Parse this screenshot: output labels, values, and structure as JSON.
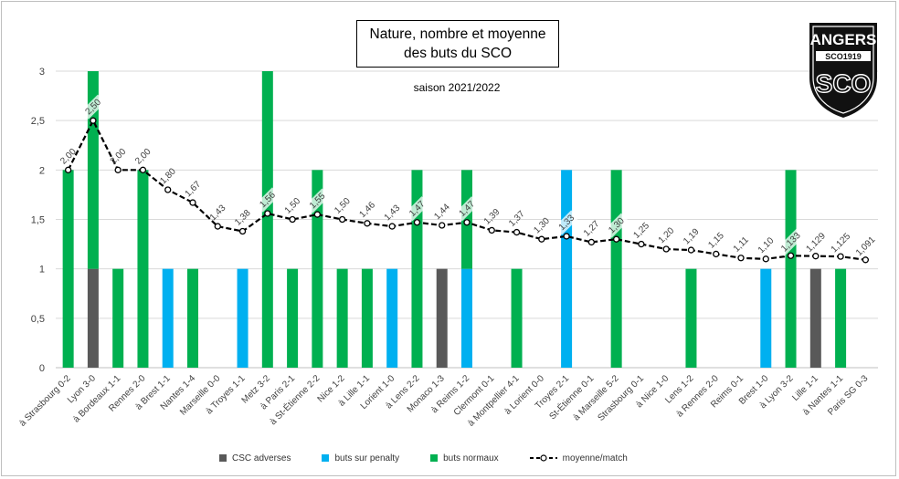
{
  "chart_data": {
    "type": "bar",
    "stacked": true,
    "title_line1": "Nature, nombre et moyenne",
    "title_line2": "des buts du SCO",
    "subtitle": "saison 2021/2022",
    "ylim": [
      0,
      3
    ],
    "yticks": [
      "0",
      "0,5",
      "1",
      "1,5",
      "2",
      "2,5",
      "3"
    ],
    "categories": [
      "à Strasbourg 0-2",
      "Lyon 3-0",
      "à Bordeaux 1-1",
      "Rennes 2-0",
      "à Brest 1-1",
      "Nantes 1-4",
      "Marseille 0-0",
      "à Troyes 1-1",
      "Metz 3-2",
      "à Paris 2-1",
      "à St-Étienne 2-2",
      "Nice 1-2",
      "à Lille 1-1",
      "Lorient 1-0",
      "à Lens 2-2",
      "Monaco 1-3",
      "à Reims 1-2",
      "Clermont 0-1",
      "à Montpellier 4-1",
      "à Lorient 0-0",
      "Troyes 2-1",
      "St-Étienne 0-1",
      "à Marseille 5-2",
      "Strasbourg 0-1",
      "à Nice 1-0",
      "Lens 1-2",
      "à Rennes 2-0",
      "Reims 0-1",
      "Brest 1-0",
      "à Lyon 3-2",
      "Lille 1-1",
      "à Nantes 1-1",
      "Paris SG 0-3"
    ],
    "series": [
      {
        "name": "CSC adverses",
        "color": "#595959",
        "values": [
          0,
          1,
          0,
          0,
          0,
          0,
          0,
          0,
          0,
          0,
          0,
          0,
          0,
          0,
          0,
          1,
          0,
          0,
          0,
          0,
          0,
          0,
          0,
          0,
          0,
          0,
          0,
          0,
          0,
          0,
          1,
          0,
          0
        ]
      },
      {
        "name": "buts sur penalty",
        "color": "#00b0f0",
        "values": [
          0,
          0,
          0,
          0,
          1,
          0,
          0,
          1,
          0,
          0,
          0,
          0,
          0,
          1,
          0,
          0,
          1,
          0,
          0,
          0,
          2,
          0,
          0,
          0,
          0,
          0,
          0,
          0,
          1,
          0,
          0,
          0,
          0
        ]
      },
      {
        "name": "buts normaux",
        "color": "#00b050",
        "values": [
          2,
          2,
          1,
          2,
          0,
          1,
          0,
          0,
          3,
          1,
          2,
          1,
          1,
          0,
          2,
          0,
          1,
          0,
          1,
          0,
          0,
          0,
          2,
          0,
          0,
          1,
          0,
          0,
          0,
          2,
          0,
          1,
          0
        ]
      }
    ],
    "line": {
      "name": "moyenne/match",
      "values": [
        2.0,
        2.5,
        2.0,
        2.0,
        1.8,
        1.67,
        1.43,
        1.38,
        1.56,
        1.5,
        1.55,
        1.5,
        1.46,
        1.43,
        1.47,
        1.44,
        1.47,
        1.39,
        1.37,
        1.3,
        1.33,
        1.27,
        1.3,
        1.25,
        1.2,
        1.19,
        1.15,
        1.11,
        1.1,
        1.133,
        1.129,
        1.125,
        1.091
      ],
      "labels": [
        "2,00",
        "2,50",
        "2,00",
        "2,00",
        "1,80",
        "1,67",
        "1,43",
        "1,38",
        "1,56",
        "1,50",
        "1,55",
        "1,50",
        "1,46",
        "1,43",
        "1,47",
        "1,44",
        "1,47",
        "1,39",
        "1,37",
        "1,30",
        "1,33",
        "1,27",
        "1,30",
        "1,25",
        "1,20",
        "1,19",
        "1,15",
        "1,11",
        "1,10",
        "1,133",
        "1,129",
        "1,125",
        "1,091"
      ]
    },
    "legend": [
      "CSC adverses",
      "buts sur penalty",
      "buts normaux",
      "moyenne/match"
    ],
    "grid": true,
    "legend_position": "bottom"
  },
  "logo": {
    "title": "ANGERS",
    "banner": "SCO1919",
    "letters": "SCO",
    "colors": {
      "black": "#111111",
      "white": "#ffffff"
    }
  }
}
